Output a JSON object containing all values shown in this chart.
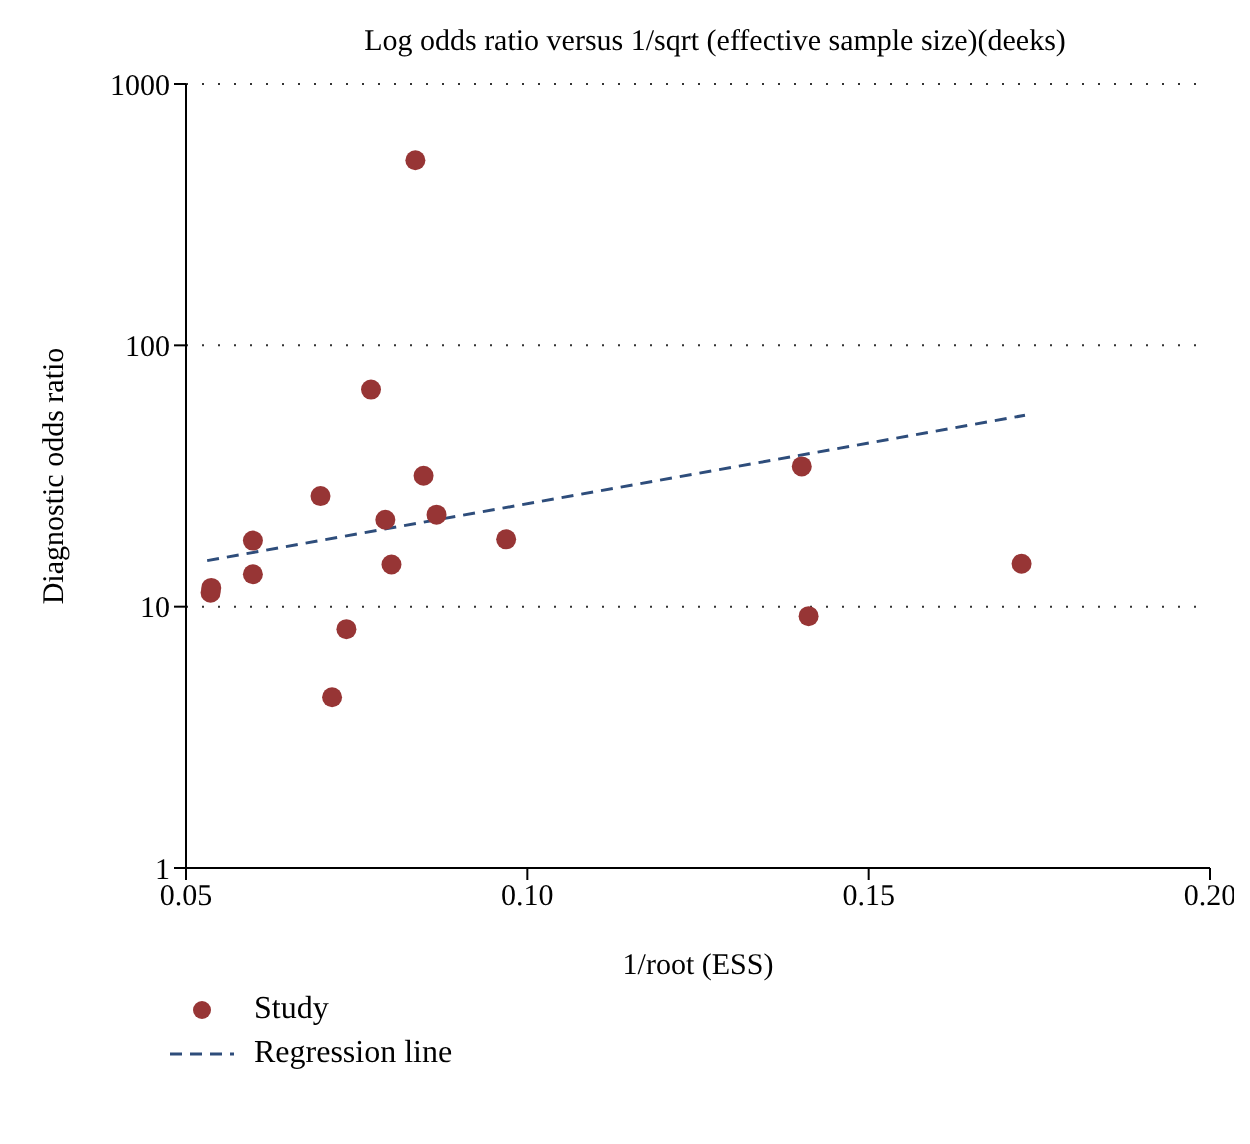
{
  "chart_data": {
    "type": "scatter",
    "title": "Log odds ratio versus 1/sqrt (effective sample size)(deeks)",
    "xlabel": "1/root (ESS)",
    "ylabel": "Diagnostic odds ratio",
    "xlim": [
      0.05,
      0.2
    ],
    "xticks": [
      {
        "value": 0.05,
        "label": "0.05"
      },
      {
        "value": 0.1,
        "label": "0.10"
      },
      {
        "value": 0.15,
        "label": "0.15"
      },
      {
        "value": 0.2,
        "label": "0.20"
      }
    ],
    "ylim": [
      1,
      1000
    ],
    "yticks": [
      1,
      10,
      100,
      1000
    ],
    "log": "y",
    "grid": "y",
    "legend": "bottom left",
    "marker": "circle",
    "series": [
      {
        "name": "Study",
        "color": "#973535",
        "x": [
          0.0536,
          0.0537,
          0.0598,
          0.0598,
          0.0697,
          0.0771,
          0.0836,
          0.0848,
          0.0792,
          0.0867,
          0.0801,
          0.0735,
          0.0714,
          0.0969,
          0.1402,
          0.1412,
          0.1724
        ],
        "values": [
          11.3,
          11.8,
          17.9,
          13.3,
          26.5,
          67.7,
          511,
          31.7,
          21.5,
          22.5,
          14.5,
          8.2,
          4.5,
          18.1,
          34.4,
          9.2,
          14.6
        ]
      },
      {
        "name": "Regression line",
        "type": "line",
        "color": "#2e4d7b",
        "line_style": "dashed",
        "marker": "none",
        "x": [
          0.0531,
          0.1729
        ],
        "values": [
          15.0,
          54.0
        ]
      }
    ]
  }
}
